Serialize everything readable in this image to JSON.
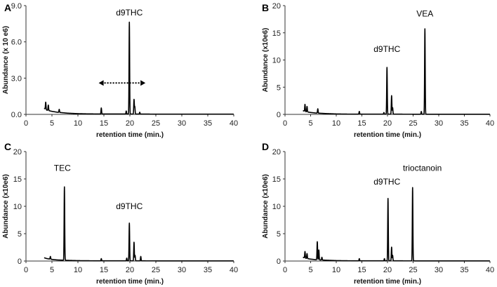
{
  "figure": {
    "layout": "2x2 grid of chromatograms"
  },
  "chart_data": [
    {
      "panel": "A",
      "type": "line",
      "title": "",
      "xlabel": "retention time (min.)",
      "ylabel": "Abundance (x 10 e6)",
      "xlim": [
        0,
        40
      ],
      "ylim": [
        0,
        9
      ],
      "x_ticks": [
        "0",
        "5",
        "10",
        "15",
        "20",
        "25",
        "30",
        "35",
        "40"
      ],
      "y_ticks": [
        "0.0",
        "3.0",
        "6.0",
        "9.0"
      ],
      "y_tick_values": [
        0,
        3,
        6,
        9
      ],
      "baseline": [
        [
          3.5,
          0.5
        ],
        [
          4,
          0.35
        ],
        [
          5,
          0.25
        ],
        [
          6,
          0.18
        ],
        [
          8,
          0.1
        ],
        [
          10,
          0.06
        ],
        [
          12,
          0.04
        ],
        [
          15,
          0.03
        ],
        [
          20,
          0.03
        ],
        [
          25,
          0.02
        ],
        [
          30,
          0.02
        ],
        [
          35,
          0.02
        ],
        [
          40,
          0.02
        ]
      ],
      "peaks": [
        [
          3.8,
          0.6
        ],
        [
          4.3,
          0.45
        ],
        [
          6.4,
          0.25
        ],
        [
          14.5,
          0.5
        ],
        [
          19.3,
          0.25
        ],
        [
          19.9,
          7.6
        ],
        [
          20.8,
          1.2
        ],
        [
          20.95,
          0.6
        ],
        [
          21.9,
          0.15
        ]
      ],
      "annotations": [
        {
          "text": "d9THC",
          "x": 19.9,
          "y": 8.2
        }
      ],
      "arrow": {
        "style": "dotted double-headed",
        "x_from": 14,
        "x_to": 23,
        "y": 2.6
      }
    },
    {
      "panel": "B",
      "type": "line",
      "title": "",
      "xlabel": "retention time (min.)",
      "ylabel": "Abundance (x10e6)",
      "xlim": [
        0,
        40
      ],
      "ylim": [
        0,
        20
      ],
      "x_ticks": [
        "0",
        "5",
        "10",
        "15",
        "20",
        "25",
        "30",
        "35",
        "40"
      ],
      "y_ticks": [
        "0",
        "5",
        "10",
        "15",
        "20"
      ],
      "y_tick_values": [
        0,
        5,
        10,
        15,
        20
      ],
      "baseline": [
        [
          3.5,
          0.7
        ],
        [
          4,
          0.5
        ],
        [
          5,
          0.35
        ],
        [
          6,
          0.25
        ],
        [
          8,
          0.15
        ],
        [
          10,
          0.08
        ],
        [
          12,
          0.05
        ],
        [
          15,
          0.04
        ],
        [
          20,
          0.04
        ],
        [
          25,
          0.03
        ],
        [
          30,
          0.03
        ],
        [
          35,
          0.03
        ],
        [
          40,
          0.03
        ]
      ],
      "peaks": [
        [
          3.9,
          1.3
        ],
        [
          4.3,
          1.0
        ],
        [
          6.4,
          0.8
        ],
        [
          14.5,
          0.5
        ],
        [
          19.3,
          0.3
        ],
        [
          19.9,
          8.6
        ],
        [
          20.8,
          3.4
        ],
        [
          21.0,
          1.2
        ],
        [
          26.6,
          0.5
        ],
        [
          27.3,
          15.7
        ]
      ],
      "annotations": [
        {
          "text": "d9THC",
          "x": 19.9,
          "y": 11.5
        },
        {
          "text": "VEA",
          "x": 27.3,
          "y": 18.0
        }
      ]
    },
    {
      "panel": "C",
      "type": "line",
      "title": "",
      "xlabel": "retention time (min.)",
      "ylabel": "Abundance (x10e6)",
      "xlim": [
        0,
        40
      ],
      "ylim": [
        0,
        20
      ],
      "x_ticks": [
        "0",
        "5",
        "10",
        "15",
        "20",
        "25",
        "30",
        "35",
        "40"
      ],
      "y_ticks": [
        "0",
        "5",
        "10",
        "15",
        "20"
      ],
      "y_tick_values": [
        0,
        5,
        10,
        15,
        20
      ],
      "baseline": [
        [
          3.5,
          0.6
        ],
        [
          4,
          0.45
        ],
        [
          5,
          0.3
        ],
        [
          6,
          0.2
        ],
        [
          8,
          0.12
        ],
        [
          10,
          0.07
        ],
        [
          12,
          0.05
        ],
        [
          15,
          0.04
        ],
        [
          20,
          0.04
        ],
        [
          25,
          0.03
        ],
        [
          30,
          0.03
        ],
        [
          35,
          0.03
        ],
        [
          40,
          0.03
        ]
      ],
      "peaks": [
        [
          4.7,
          0.5
        ],
        [
          7.4,
          13.4
        ],
        [
          14.5,
          0.4
        ],
        [
          19.4,
          0.5
        ],
        [
          19.9,
          6.9
        ],
        [
          20.8,
          3.4
        ],
        [
          21.0,
          1.0
        ],
        [
          22.1,
          0.8
        ]
      ],
      "annotations": [
        {
          "text": "TEC",
          "x": 7.0,
          "y": 16.5
        },
        {
          "text": "d9THC",
          "x": 19.9,
          "y": 9.5
        }
      ]
    },
    {
      "panel": "D",
      "type": "line",
      "title": "",
      "xlabel": "retention time (min.)",
      "ylabel": "Abundance (x10e6)",
      "xlim": [
        0,
        40
      ],
      "ylim": [
        0,
        20
      ],
      "x_ticks": [
        "0",
        "5",
        "10",
        "15",
        "20",
        "25",
        "30",
        "35",
        "40"
      ],
      "y_ticks": [
        "0",
        "5",
        "10",
        "15",
        "20"
      ],
      "y_tick_values": [
        0,
        5,
        10,
        15,
        20
      ],
      "baseline": [
        [
          3.5,
          0.7
        ],
        [
          4,
          0.5
        ],
        [
          5,
          0.35
        ],
        [
          6,
          0.25
        ],
        [
          8,
          0.15
        ],
        [
          10,
          0.08
        ],
        [
          12,
          0.05
        ],
        [
          15,
          0.04
        ],
        [
          20,
          0.04
        ],
        [
          25,
          0.03
        ],
        [
          30,
          0.03
        ],
        [
          35,
          0.03
        ],
        [
          40,
          0.03
        ]
      ],
      "peaks": [
        [
          3.9,
          1.2
        ],
        [
          4.3,
          0.9
        ],
        [
          6.3,
          3.3
        ],
        [
          6.6,
          1.8
        ],
        [
          7.2,
          0.5
        ],
        [
          14.5,
          0.4
        ],
        [
          19.4,
          0.4
        ],
        [
          20.1,
          11.4
        ],
        [
          20.8,
          2.5
        ],
        [
          21.0,
          1.0
        ],
        [
          24.9,
          13.4
        ]
      ],
      "annotations": [
        {
          "text": "d9THC",
          "x": 19.9,
          "y": 14.0
        },
        {
          "text": "trioctanoin",
          "x": 26.8,
          "y": 16.5
        }
      ]
    }
  ]
}
